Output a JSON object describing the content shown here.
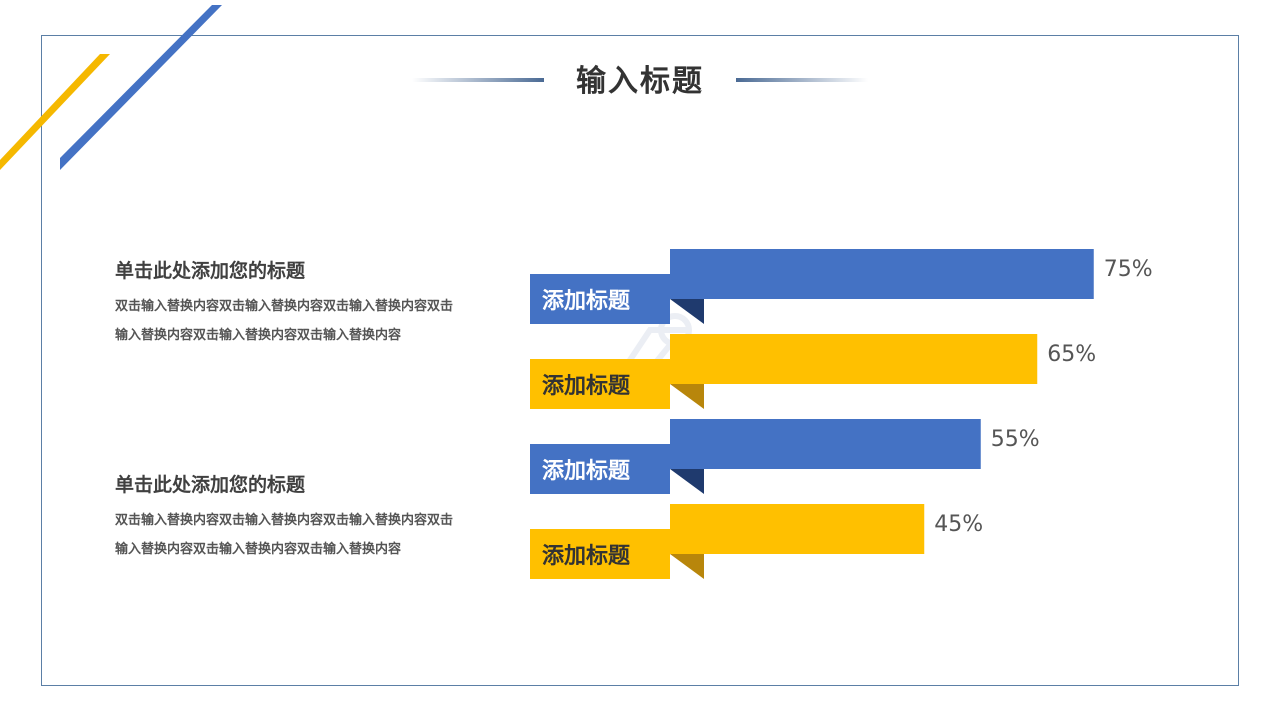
{
  "slide": {
    "title": "输入标题"
  },
  "blocks": [
    {
      "heading": "单击此处添加您的标题",
      "body": "双击输入替换内容双击输入替换内容双击输入替换内容双击输入替换内容双击输入替换内容双击输入替换内容"
    },
    {
      "heading": "单击此处添加您的标题",
      "body": "双击输入替换内容双击输入替换内容双击输入替换内容双击输入替换内容双击输入替换内容双击输入替换内容"
    }
  ],
  "colors": {
    "blue": "#4472c4",
    "blue_dark": "#1f3a6e",
    "yellow": "#ffc000",
    "yellow_dark": "#b8860b",
    "frame": "#5b7fa6",
    "deco_yellow": "#f5b800",
    "deco_blue": "#4472c4"
  },
  "chart_data": {
    "type": "bar",
    "orientation": "horizontal",
    "categories": [
      "添加标题",
      "添加标题",
      "添加标题",
      "添加标题"
    ],
    "values": [
      75,
      65,
      55,
      45
    ],
    "value_labels": [
      "75%",
      "65%",
      "55%",
      "45%"
    ],
    "bar_colors": [
      "blue",
      "yellow",
      "blue",
      "yellow"
    ],
    "xlim": [
      0,
      100
    ],
    "grid": false,
    "legend": "none"
  }
}
